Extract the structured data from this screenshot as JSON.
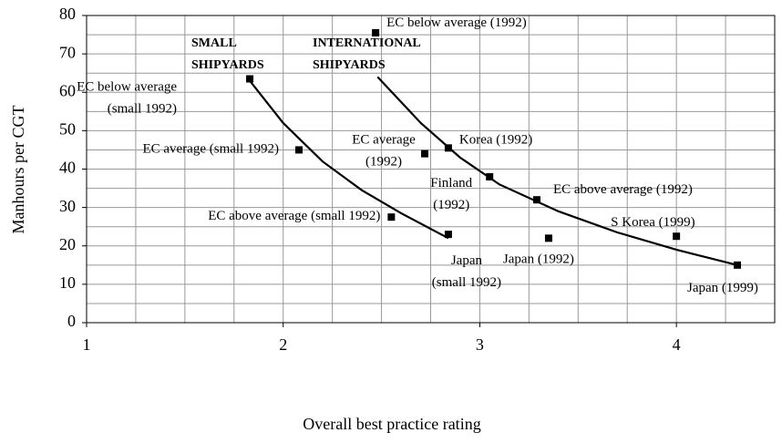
{
  "chart_data": {
    "type": "scatter",
    "xlabel": "Overall best practice rating",
    "ylabel": "Manhours per CGT",
    "xlim": [
      1,
      4.5
    ],
    "ylim": [
      0,
      80
    ],
    "xticks": [
      1,
      2,
      3,
      4
    ],
    "yticks": [
      0,
      10,
      20,
      30,
      40,
      50,
      60,
      70,
      80
    ],
    "xgrid": [
      1.25,
      1.5,
      1.75,
      2,
      2.25,
      2.5,
      2.75,
      3,
      3.25,
      3.5,
      3.75,
      4,
      4.25
    ],
    "ygrid": [
      5,
      10,
      15,
      20,
      25,
      30,
      35,
      40,
      45,
      50,
      55,
      60,
      65,
      70,
      75
    ],
    "grid": true,
    "color": "#000000",
    "points": {
      "x": [
        1.83,
        2.08,
        2.55,
        2.84,
        2.47,
        2.72,
        2.84,
        3.05,
        3.29,
        3.35,
        4.0,
        4.31
      ],
      "y": [
        63.5,
        45,
        27.5,
        23,
        75.5,
        44,
        45.5,
        38,
        32,
        22,
        22.5,
        15
      ],
      "labels": [
        "EC below average\n(small 1992)",
        "EC average (small 1992)",
        "EC above average (small 1992)",
        "Japan\n(small 1992)",
        "EC below average (1992)",
        "EC average\n(1992)",
        "Korea (1992)",
        "Finland\n(1992)",
        "EC above average (1992)",
        "Japan (1992)",
        "S Korea (1999)",
        "Japan (1999)"
      ]
    },
    "curves": [
      {
        "x": [
          1.83,
          2.0,
          2.2,
          2.4,
          2.6,
          2.84
        ],
        "y": [
          63,
          52,
          42,
          34.5,
          28.5,
          22
        ]
      },
      {
        "x": [
          2.48,
          2.7,
          2.9,
          3.1,
          3.4,
          3.7,
          4.0,
          4.31
        ],
        "y": [
          64,
          52,
          43,
          36,
          29,
          23.5,
          19,
          15
        ]
      }
    ],
    "annotations": [
      "SMALL\nSHIPYARDS",
      "INTERNATIONAL\nSHIPYARDS"
    ]
  }
}
